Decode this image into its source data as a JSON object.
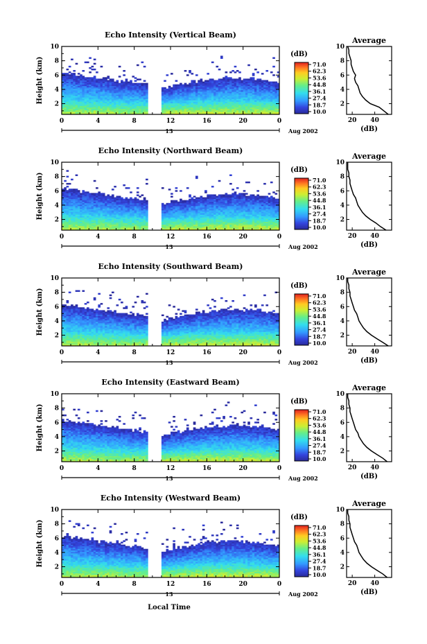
{
  "figure": {
    "xlabel": "Local Time",
    "date_label": "Aug 2002",
    "colorbar_unit": "(dB)",
    "colorbar_ticks": [
      "71.0",
      "62.3",
      "53.6",
      "44.8",
      "36.1",
      "27.4",
      "18.7",
      "10.0"
    ],
    "avg_title": "Average",
    "avg_xlabel": "(dB)",
    "day_marker": "13"
  },
  "chart_data": [
    {
      "type": "heatmap",
      "title": "Echo Intensity (Vertical Beam)",
      "ylabel": "Height (km)",
      "xlim": [
        0,
        24
      ],
      "ylim": [
        0.5,
        10
      ],
      "xticks": [
        "0",
        "4",
        "8",
        "12",
        "16",
        "20",
        "0"
      ],
      "yticks": [
        "2",
        "4",
        "6",
        "8",
        "10"
      ],
      "colorbar": {
        "unit": "(dB)",
        "min": 10.0,
        "max": 71.0
      },
      "gap_hours": [
        9.5,
        10.8
      ],
      "avg_profile": {
        "title": "Average",
        "xlabel": "(dB)",
        "xticks": [
          "20",
          "40"
        ],
        "xlim": [
          15,
          55
        ],
        "height": [
          0.5,
          1.0,
          1.5,
          2.0,
          2.5,
          3.0,
          3.5,
          4.0,
          4.5,
          5.0,
          5.5,
          6.0,
          6.5,
          7.0,
          7.5,
          8.0,
          8.5,
          9.0,
          9.5,
          10.0
        ],
        "value": [
          52,
          48,
          44,
          36,
          32,
          29,
          27,
          26,
          25,
          23,
          22,
          23,
          21,
          20,
          19,
          19,
          18,
          17,
          17,
          16
        ]
      }
    },
    {
      "type": "heatmap",
      "title": "Echo Intensity (Northward Beam)",
      "ylabel": "Height (km)",
      "xlim": [
        0,
        24
      ],
      "ylim": [
        0.5,
        10
      ],
      "xticks": [
        "0",
        "4",
        "8",
        "12",
        "16",
        "20",
        "0"
      ],
      "yticks": [
        "2",
        "4",
        "6",
        "8",
        "10"
      ],
      "colorbar": {
        "unit": "(dB)",
        "min": 10.0,
        "max": 71.0
      },
      "gap_hours": [
        9.5,
        10.8
      ],
      "avg_profile": {
        "title": "Average",
        "xlabel": "(dB)",
        "xticks": [
          "20",
          "40"
        ],
        "xlim": [
          15,
          55
        ],
        "height": [
          0.5,
          1.0,
          1.5,
          2.0,
          2.5,
          3.0,
          3.5,
          4.0,
          4.5,
          5.0,
          5.5,
          6.0,
          6.5,
          7.0,
          7.5,
          8.0,
          8.5,
          9.0,
          9.5,
          10.0
        ],
        "value": [
          50,
          45,
          41,
          36,
          32,
          29,
          27,
          25,
          24,
          23,
          21,
          20,
          19,
          18,
          18,
          17,
          17,
          16,
          16,
          16
        ]
      }
    },
    {
      "type": "heatmap",
      "title": "Echo Intensity (Southward Beam)",
      "ylabel": "Height (km)",
      "xlim": [
        0,
        24
      ],
      "ylim": [
        0.5,
        10
      ],
      "xticks": [
        "0",
        "4",
        "8",
        "12",
        "16",
        "20",
        "0"
      ],
      "yticks": [
        "2",
        "4",
        "6",
        "8",
        "10"
      ],
      "colorbar": {
        "unit": "(dB)",
        "min": 10.0,
        "max": 71.0
      },
      "gap_hours": [
        9.5,
        10.8
      ],
      "avg_profile": {
        "title": "Average",
        "xlabel": "(dB)",
        "xticks": [
          "20",
          "40"
        ],
        "xlim": [
          15,
          55
        ],
        "height": [
          0.5,
          1.0,
          1.5,
          2.0,
          2.5,
          3.0,
          3.5,
          4.0,
          4.5,
          5.0,
          5.5,
          6.0,
          6.5,
          7.0,
          7.5,
          8.0,
          8.5,
          9.0,
          9.5,
          10.0
        ],
        "value": [
          52,
          47,
          42,
          37,
          33,
          30,
          28,
          26,
          25,
          24,
          22,
          21,
          20,
          19,
          18,
          18,
          17,
          17,
          16,
          16
        ]
      }
    },
    {
      "type": "heatmap",
      "title": "Echo Intensity (Eastward Beam)",
      "ylabel": "Height (km)",
      "xlim": [
        0,
        24
      ],
      "ylim": [
        0.5,
        10
      ],
      "xticks": [
        "0",
        "4",
        "8",
        "12",
        "16",
        "20",
        "0"
      ],
      "yticks": [
        "2",
        "4",
        "6",
        "8",
        "10"
      ],
      "colorbar": {
        "unit": "(dB)",
        "min": 10.0,
        "max": 71.0
      },
      "gap_hours": [
        9.5,
        10.8
      ],
      "avg_profile": {
        "title": "Average",
        "xlabel": "(dB)",
        "xticks": [
          "20",
          "40"
        ],
        "xlim": [
          15,
          55
        ],
        "height": [
          0.5,
          1.0,
          1.5,
          2.0,
          2.5,
          3.0,
          3.5,
          4.0,
          4.5,
          5.0,
          5.5,
          6.0,
          6.5,
          7.0,
          7.5,
          8.0,
          8.5,
          9.0,
          9.5,
          10.0
        ],
        "value": [
          51,
          47,
          42,
          37,
          33,
          30,
          28,
          26,
          25,
          23,
          22,
          21,
          20,
          19,
          18,
          18,
          17,
          17,
          16,
          16
        ]
      }
    },
    {
      "type": "heatmap",
      "title": "Echo Intensity (Westward Beam)",
      "ylabel": "Height (km)",
      "xlim": [
        0,
        24
      ],
      "ylim": [
        0.5,
        10
      ],
      "xticks": [
        "0",
        "4",
        "8",
        "12",
        "16",
        "20",
        "0"
      ],
      "yticks": [
        "2",
        "4",
        "6",
        "8",
        "10"
      ],
      "colorbar": {
        "unit": "(dB)",
        "min": 10.0,
        "max": 71.0
      },
      "gap_hours": [
        9.5,
        10.8
      ],
      "avg_profile": {
        "title": "Average",
        "xlabel": "(dB)",
        "xticks": [
          "20",
          "40"
        ],
        "xlim": [
          15,
          55
        ],
        "height": [
          0.5,
          1.0,
          1.5,
          2.0,
          2.5,
          3.0,
          3.5,
          4.0,
          4.5,
          5.0,
          5.5,
          6.0,
          6.5,
          7.0,
          7.5,
          8.0,
          8.5,
          9.0,
          9.5,
          10.0
        ],
        "value": [
          51,
          47,
          42,
          37,
          33,
          30,
          28,
          26,
          25,
          24,
          22,
          21,
          20,
          19,
          18,
          18,
          17,
          17,
          16,
          16
        ]
      }
    }
  ]
}
